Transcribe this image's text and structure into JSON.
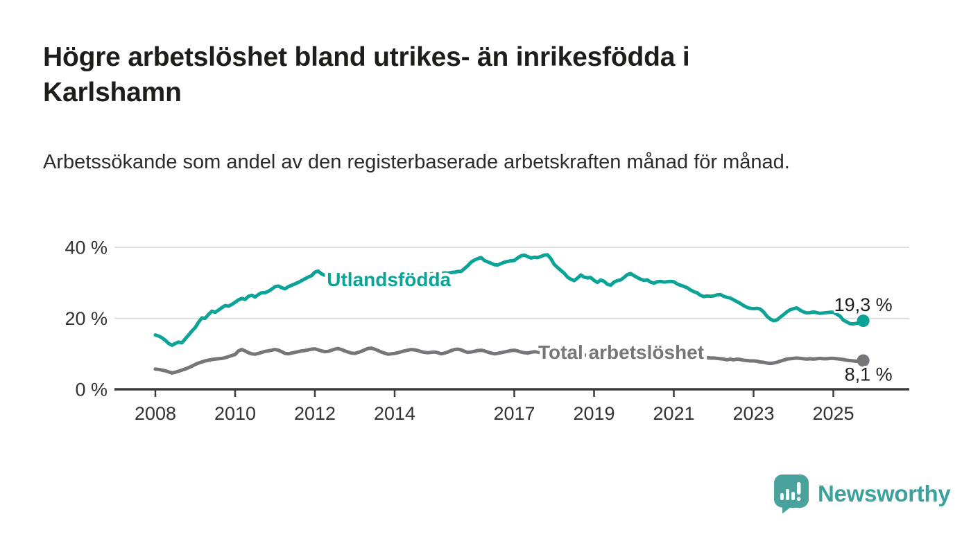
{
  "title": "Högre arbetslöshet bland utrikes- än inrikesfödda i Karlshamn",
  "subtitle": "Arbetssökande som andel av den registerbaserade arbetskraften månad för månad.",
  "branding": {
    "logo_text": "Newsworthy",
    "logo_icon": "bar-chart-speech-bubble-icon",
    "logo_color": "#4aa29c"
  },
  "colors": {
    "background": "#ffffff",
    "title_text": "#1d1d1b",
    "axis": "#3b3b3b",
    "gridline": "#d8d8d8",
    "tick_label": "#333333",
    "series_foreign_born": "#0aa396",
    "series_total": "#76757a"
  },
  "chart_data": {
    "type": "line",
    "title": "Högre arbetslöshet bland utrikes- än inrikesfödda i Karlshamn",
    "subtitle": "Arbetssökande som andel av den registerbaserade arbetskraften månad för månad.",
    "unit": "%",
    "x_start_year": 2008,
    "x_start_month": 1,
    "x_step_months": 1,
    "x_tick_years": [
      2008,
      2010,
      2012,
      2014,
      2017,
      2019,
      2021,
      2023,
      2025
    ],
    "x_tick_labels": [
      "2008",
      "2010",
      "2012",
      "2014",
      "2017",
      "2019",
      "2021",
      "2023",
      "2025"
    ],
    "y_ticks": [
      0,
      20,
      40
    ],
    "y_tick_labels": [
      "0 %",
      "20 %",
      "40 %"
    ],
    "ylim": [
      0,
      43
    ],
    "grid": "horizontal-only",
    "legend_position": "inline-labels",
    "series": [
      {
        "name": "Utlandsfödda",
        "color": "#0aa396",
        "end_label": "19,3 %",
        "end_value": 19.3,
        "label_anchor": {
          "year": 2012.3,
          "value": 31.0
        },
        "values": [
          15.3,
          15.0,
          14.5,
          13.8,
          12.9,
          12.4,
          12.9,
          13.3,
          13.1,
          14.2,
          15.3,
          16.4,
          17.4,
          18.9,
          20.1,
          20.0,
          21.1,
          22.0,
          21.7,
          22.3,
          23.0,
          23.6,
          23.4,
          23.9,
          24.5,
          25.2,
          25.6,
          25.3,
          26.2,
          26.5,
          26.0,
          26.7,
          27.2,
          27.2,
          27.6,
          28.2,
          28.9,
          29.1,
          28.6,
          28.3,
          28.9,
          29.3,
          29.7,
          30.1,
          30.6,
          31.1,
          31.6,
          32.0,
          33.0,
          33.3,
          32.5,
          32.1,
          31.8,
          31.6,
          31.8,
          31.5,
          31.2,
          31.0,
          31.2,
          31.0,
          30.8,
          31.0,
          30.7,
          30.4,
          30.2,
          30.5,
          30.9,
          31.2,
          31.4,
          31.2,
          31.0,
          31.3,
          31.5,
          31.7,
          31.5,
          31.3,
          31.6,
          31.9,
          32.1,
          32.0,
          32.2,
          32.4,
          32.2,
          32.5,
          32.6,
          32.4,
          32.6,
          32.8,
          32.7,
          32.9,
          33.0,
          33.2,
          33.2,
          34.0,
          34.8,
          35.8,
          36.4,
          36.8,
          37.1,
          36.3,
          35.9,
          35.5,
          35.1,
          35.0,
          35.4,
          35.8,
          36.0,
          36.2,
          36.3,
          37.0,
          37.6,
          37.8,
          37.4,
          37.0,
          37.2,
          37.1,
          37.4,
          37.8,
          37.9,
          36.8,
          35.2,
          34.3,
          33.5,
          32.7,
          31.6,
          31.0,
          30.6,
          31.3,
          32.2,
          31.6,
          31.4,
          31.5,
          30.7,
          30.1,
          30.8,
          30.4,
          29.6,
          29.3,
          30.2,
          30.6,
          30.8,
          31.5,
          32.3,
          32.6,
          32.0,
          31.5,
          31.0,
          30.7,
          30.8,
          30.2,
          29.9,
          30.3,
          30.4,
          30.2,
          30.3,
          30.4,
          30.3,
          29.7,
          29.3,
          29.0,
          28.6,
          28.0,
          27.5,
          27.2,
          26.5,
          26.1,
          26.3,
          26.2,
          26.3,
          26.6,
          26.7,
          26.2,
          25.9,
          25.7,
          25.2,
          24.7,
          24.2,
          23.6,
          23.1,
          22.8,
          22.7,
          22.8,
          22.6,
          21.8,
          20.6,
          19.8,
          19.3,
          19.5,
          20.3,
          21.0,
          21.8,
          22.4,
          22.7,
          22.9,
          22.3,
          21.8,
          21.5,
          21.6,
          21.8,
          21.6,
          21.4,
          21.5,
          21.6,
          21.7,
          21.7,
          21.2,
          20.6,
          19.5,
          19.0,
          18.5,
          18.4,
          18.6,
          18.7,
          19.3
        ]
      },
      {
        "name": "Total arbetslöshet",
        "color": "#76757a",
        "end_label": "8,1 %",
        "end_value": 8.1,
        "label_anchor": {
          "year": 2017.6,
          "value": 10.5
        },
        "values": [
          5.7,
          5.6,
          5.4,
          5.2,
          4.9,
          4.6,
          4.8,
          5.1,
          5.4,
          5.7,
          6.1,
          6.5,
          7.0,
          7.4,
          7.7,
          8.0,
          8.2,
          8.4,
          8.5,
          8.6,
          8.7,
          8.9,
          9.2,
          9.5,
          9.8,
          10.8,
          11.2,
          10.8,
          10.3,
          10.0,
          9.9,
          10.1,
          10.4,
          10.7,
          10.8,
          11.0,
          11.2,
          11.0,
          10.6,
          10.1,
          10.0,
          10.2,
          10.4,
          10.6,
          10.8,
          10.9,
          11.1,
          11.3,
          11.4,
          11.1,
          10.8,
          10.6,
          10.7,
          11.0,
          11.3,
          11.5,
          11.2,
          10.8,
          10.5,
          10.2,
          10.1,
          10.4,
          10.7,
          11.1,
          11.5,
          11.6,
          11.3,
          10.9,
          10.5,
          10.2,
          9.9,
          10.0,
          10.1,
          10.3,
          10.6,
          10.8,
          11.0,
          11.2,
          11.1,
          10.9,
          10.6,
          10.4,
          10.3,
          10.4,
          10.5,
          10.3,
          10.0,
          10.2,
          10.5,
          10.9,
          11.2,
          11.3,
          11.1,
          10.7,
          10.4,
          10.5,
          10.7,
          10.9,
          11.0,
          10.8,
          10.5,
          10.2,
          10.0,
          10.1,
          10.3,
          10.5,
          10.7,
          10.9,
          11.0,
          10.8,
          10.5,
          10.3,
          10.2,
          10.4,
          10.6,
          10.5,
          10.3,
          10.1,
          10.0,
          9.9,
          9.8,
          9.7,
          9.6,
          9.5,
          9.4,
          9.3,
          9.3,
          9.4,
          9.5,
          9.6,
          9.6,
          9.5,
          9.5,
          9.4,
          9.3,
          9.2,
          9.2,
          9.3,
          9.4,
          9.4,
          9.5,
          9.6,
          9.7,
          9.8,
          9.8,
          10.2,
          10.9,
          11.3,
          11.4,
          11.3,
          11.2,
          11.0,
          10.9,
          10.7,
          10.6,
          10.5,
          10.4,
          10.2,
          10.0,
          9.8,
          9.7,
          9.5,
          9.4,
          9.2,
          9.1,
          9.0,
          8.9,
          8.8,
          8.8,
          8.7,
          8.6,
          8.5,
          8.3,
          8.5,
          8.3,
          8.5,
          8.4,
          8.2,
          8.1,
          8.0,
          8.0,
          7.9,
          7.7,
          7.6,
          7.4,
          7.3,
          7.4,
          7.6,
          7.9,
          8.2,
          8.5,
          8.6,
          8.7,
          8.8,
          8.7,
          8.6,
          8.5,
          8.6,
          8.5,
          8.6,
          8.7,
          8.6,
          8.6,
          8.7,
          8.7,
          8.6,
          8.5,
          8.4,
          8.2,
          8.1,
          8.0,
          7.9,
          8.0,
          8.1
        ]
      }
    ]
  }
}
